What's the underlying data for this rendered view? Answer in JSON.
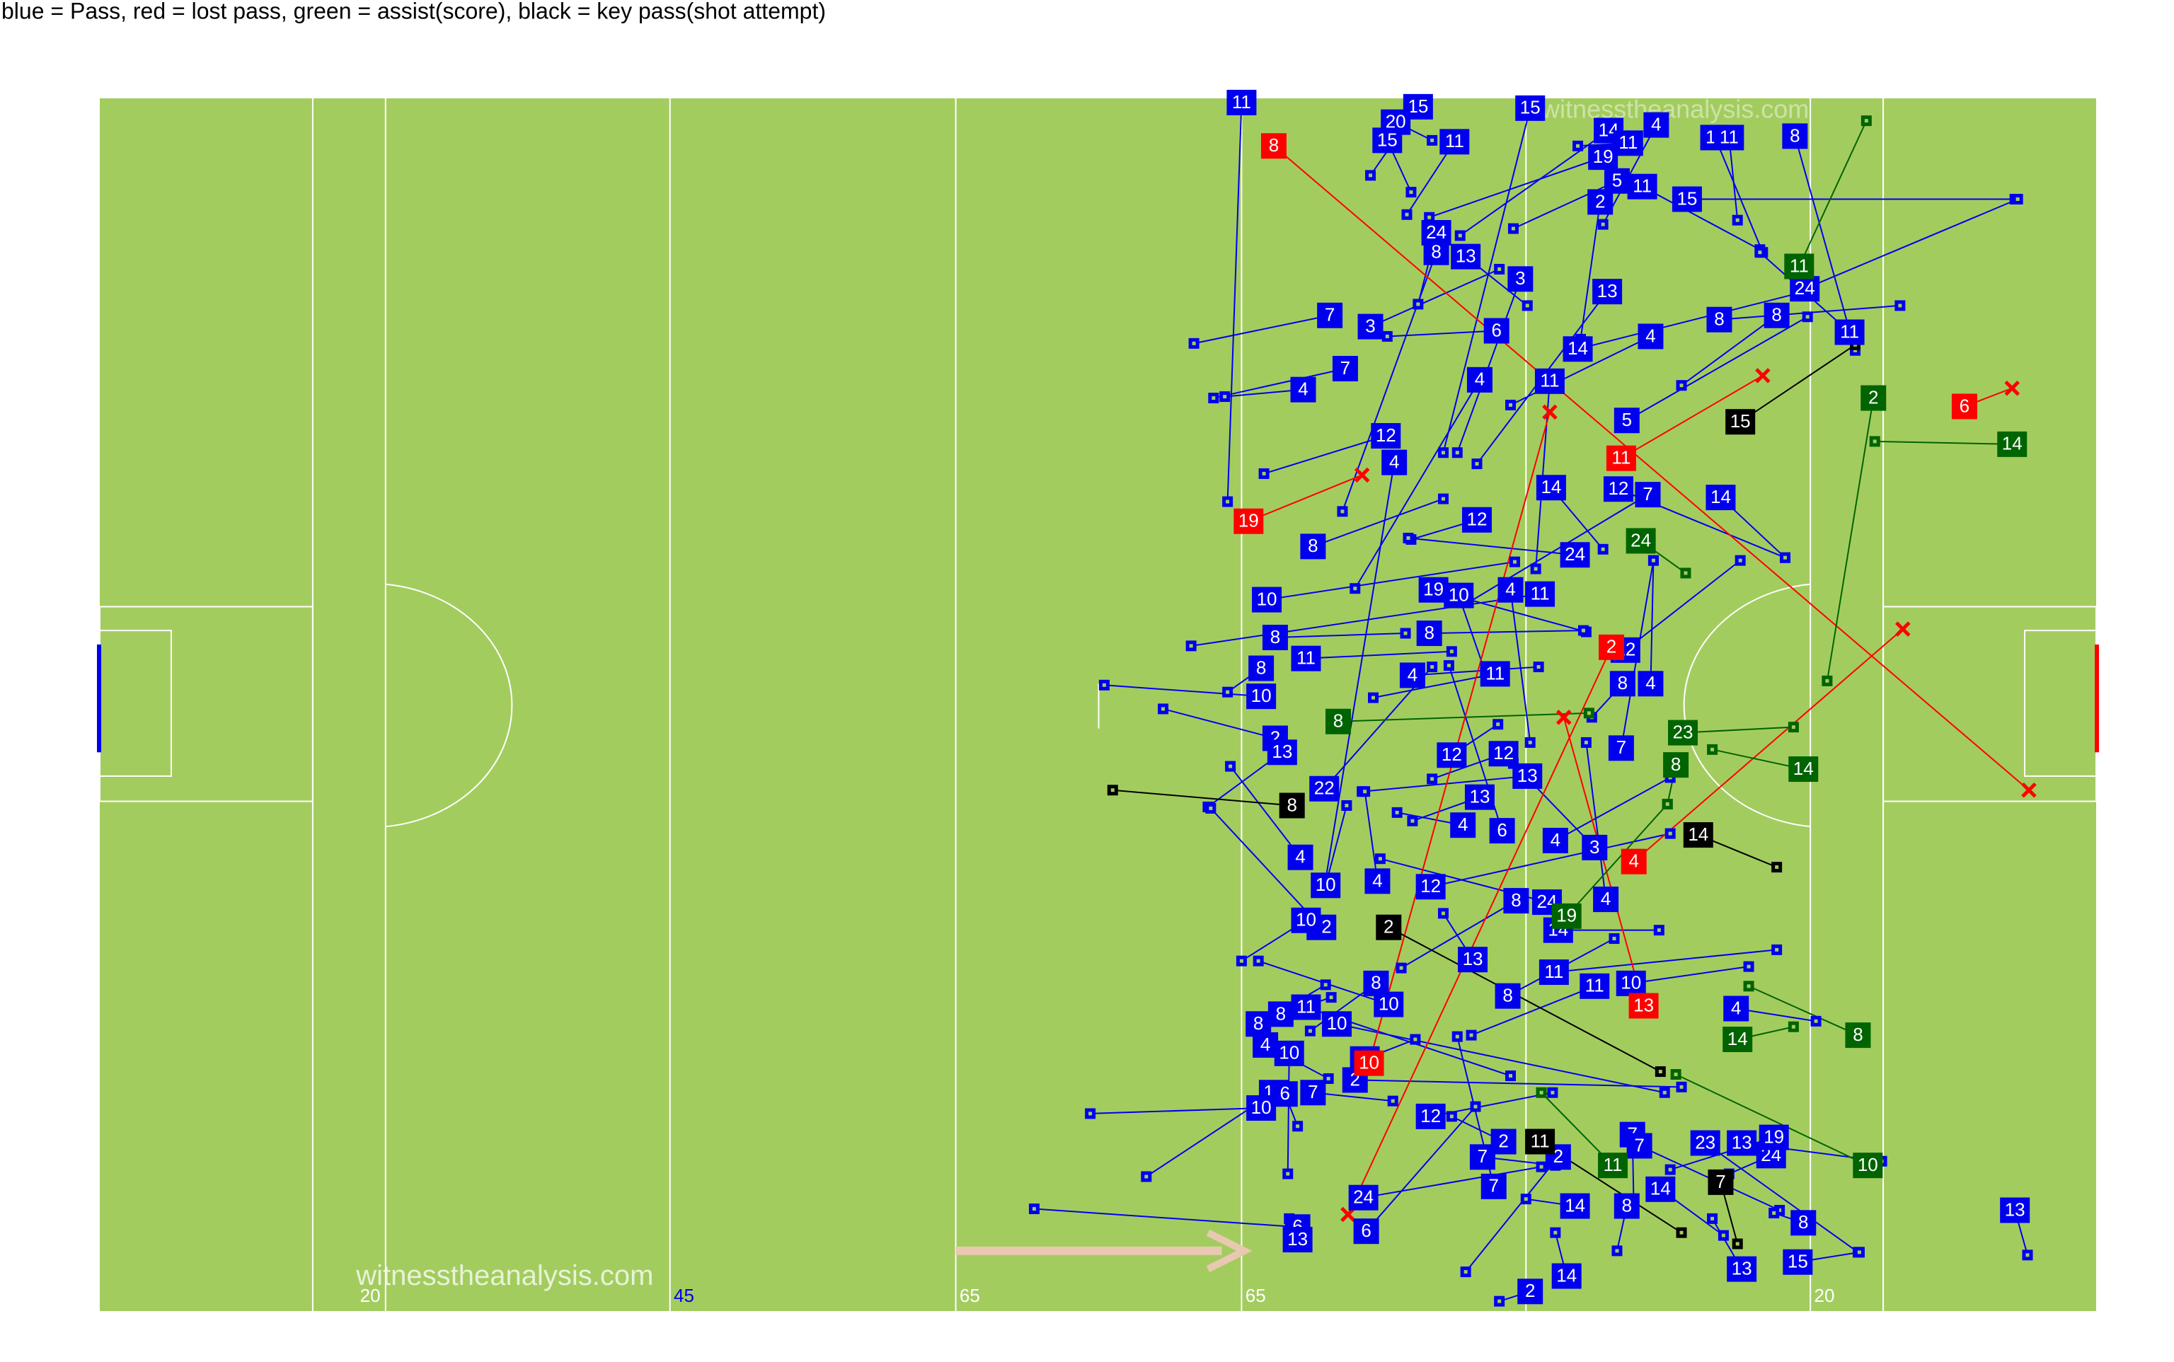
{
  "chart_data": {
    "type": "pass-map",
    "title": "blue = Pass, red = lost pass, green = assist(score), black = key pass(shot attempt)",
    "watermark": "witnesstheanalysis.com",
    "line_labels": [
      20,
      45,
      65,
      65,
      20
    ],
    "pitch_color": "#a3cc5f",
    "xlim": [
      71,
      1496
    ],
    "ylim": [
      70,
      936
    ],
    "series": [
      {
        "color": "#0000ee",
        "end_marker": "square",
        "player": [
          11,
          15,
          20,
          15,
          11,
          15,
          14,
          4,
          11,
          11,
          11,
          8,
          19,
          5,
          11,
          2,
          15,
          24,
          8,
          13,
          3,
          7,
          3,
          6,
          13,
          4,
          8,
          8,
          24,
          11,
          14,
          7,
          4,
          4,
          11,
          5,
          12,
          4,
          14,
          12,
          7,
          14,
          12,
          24,
          8,
          10,
          19,
          10,
          4,
          11,
          8,
          8,
          11,
          8,
          4,
          11,
          12,
          8,
          4,
          10,
          2,
          13,
          7,
          12,
          12,
          13,
          22,
          13,
          4,
          6,
          4,
          3,
          4,
          10,
          4,
          12,
          8,
          24,
          4,
          12,
          10,
          14,
          13,
          11,
          11,
          10,
          8,
          8,
          10,
          11,
          8,
          10,
          8,
          4,
          10,
          10,
          4,
          2,
          12,
          6,
          7,
          10,
          12,
          7,
          7,
          2,
          7,
          2,
          23,
          13,
          24,
          19,
          7,
          14,
          14,
          8,
          8,
          24,
          6,
          13,
          6,
          13,
          15,
          2,
          14,
          13
        ],
        "x": [
          886,
          1012,
          996,
          990,
          1038,
          1092,
          1148,
          1182,
          1162,
          1224,
          1234,
          1281,
          1144,
          1154,
          1172,
          1142,
          1204,
          1025,
          1025,
          1046,
          1085,
          949,
          978,
          1068,
          1147,
          1178,
          1227,
          1268,
          1288,
          1320,
          1126,
          960,
          930,
          1056,
          1106,
          1161,
          989,
          995,
          1107,
          1155,
          1176,
          1228,
          1054,
          1124,
          937,
          904,
          1023,
          1041,
          1078,
          1099,
          910,
          900,
          932,
          1020,
          1008,
          1067,
          1160,
          1158,
          1178,
          900,
          910,
          915,
          1157,
          1036,
          1073,
          1090,
          945,
          1056,
          1044,
          1072,
          1110,
          1138,
          928,
          946,
          983,
          1021,
          1082,
          1104,
          1146,
          943,
          932,
          1112,
          1051,
          1109,
          1138,
          1164,
          1076,
          982,
          991,
          932,
          914,
          954,
          898,
          903,
          920,
          974,
          1239,
          967,
          909,
          917,
          937,
          900,
          1021,
          1165,
          1170,
          1073,
          1058,
          1112,
          1217,
          1243,
          1264,
          1266,
          1066,
          1185,
          1124,
          1161,
          1287,
          973,
          926,
          926,
          975,
          1243,
          1283,
          1092,
          1118,
          1438
        ],
        "y": [
          73,
          76,
          87,
          100,
          101,
          77,
          93,
          89,
          102,
          98,
          98,
          97,
          112,
          129,
          133,
          144,
          142,
          166,
          180,
          183,
          199,
          225,
          233,
          236,
          208,
          240,
          228,
          225,
          206,
          237,
          249,
          263,
          278,
          271,
          272,
          300,
          311,
          330,
          348,
          349,
          353,
          355,
          371,
          396,
          390,
          428,
          421,
          425,
          421,
          424,
          455,
          477,
          470,
          452,
          482,
          481,
          464,
          488,
          488,
          497,
          527,
          537,
          534,
          539,
          538,
          554,
          563,
          569,
          589,
          593,
          600,
          605,
          612,
          632,
          629,
          633,
          643,
          644,
          642,
          662,
          657,
          664,
          685,
          694,
          704,
          702,
          711,
          702,
          717,
          719,
          724,
          731,
          731,
          746,
          752,
          756,
          720,
          771,
          780,
          781,
          780,
          791,
          797,
          810,
          818,
          815,
          826,
          826,
          816,
          816,
          825,
          812,
          847,
          849,
          861,
          861,
          873,
          855,
          876,
          885,
          879,
          906,
          901,
          922,
          911,
          864
        ],
        "x_end": [
          876,
          978,
          1022,
          1007,
          1004,
          1030,
          1042,
          1144,
          1126,
          1258,
          1240,
          1324,
          1020,
          1080,
          1256,
          1128,
          1438,
          1012,
          958,
          1090,
          1040,
          852,
          1070,
          990,
          1054,
          1078,
          1356,
          1200,
          1440,
          1256,
          1292,
          866,
          874,
          967,
          1096,
          1290,
          902,
          946,
          1144,
          1274,
          1048,
          1274,
          1007,
          1005,
          1030,
          1081,
          1132,
          1060,
          1092,
          850,
          1003,
          876,
          1036,
          1130,
          1098,
          980,
          1242,
          1136,
          1180,
          788,
          830,
          862,
          1180,
          1069,
          1022,
          972,
          1022,
          1008,
          997,
          1034,
          1192,
          1080,
          878,
          961,
          974,
          1192,
          1000,
          985,
          1132,
          864,
          886,
          1184,
          1030,
          1268,
          1050,
          1248,
          1152,
          935,
          898,
          1078,
          950,
          1188,
          946,
          948,
          919,
          1010,
          1296,
          1200,
          818,
          926,
          994,
          778,
          1108,
          1166,
          1270,
          1036,
          1110,
          1046,
          1326,
          1343,
          1234,
          1192,
          1040,
          1230,
          1089,
          1154,
          1266,
          1100,
          738,
          920,
          1053,
          1222,
          1327,
          1070,
          1110,
          1447
        ],
        "y_end": [
          358,
          125,
          100,
          137,
          153,
          323,
          168,
          160,
          104,
          180,
          157,
          250,
          155,
          163,
          178,
          242,
          142,
          217,
          365,
          218,
          323,
          245,
          192,
          240,
          331,
          289,
          218,
          275,
          142,
          180,
          207,
          284,
          283,
          420,
          406,
          226,
          338,
          628,
          392,
          398,
          430,
          398,
          385,
          384,
          356,
          401,
          451,
          480,
          530,
          461,
          452,
          494,
          465,
          450,
          476,
          498,
          400,
          512,
          400,
          489,
          506,
          576,
          400,
          517,
          556,
          565,
          476,
          586,
          580,
          475,
          555,
          545,
          547,
          575,
          565,
          595,
          691,
          613,
          530,
          577,
          686,
          664,
          652,
          678,
          739,
          690,
          670,
          736,
          686,
          768,
          712,
          780,
          703,
          770,
          838,
          742,
          729,
          776,
          840,
          804,
          786,
          795,
          780,
          864,
          864,
          797,
          832,
          908,
          894,
          829,
          838,
          835,
          740,
          882,
          856,
          893,
          866,
          833,
          863,
          870,
          790,
          870,
          894,
          929,
          880,
          896
        ]
      },
      {
        "color": "#ff0000",
        "end_marker": "cross",
        "player": [
          8,
          11,
          19,
          6,
          4,
          13,
          10,
          2
        ],
        "x": [
          909,
          1157,
          891,
          1402,
          1166,
          1173,
          977,
          1150
        ],
        "y": [
          104,
          327,
          372,
          290,
          615,
          718,
          759,
          462
        ],
        "x_end": [
          1448,
          1258,
          972,
          1436,
          1358,
          1116,
          1106,
          962
        ],
        "y_end": [
          564,
          268,
          339,
          277,
          449,
          512,
          294,
          867
        ]
      },
      {
        "color": "#006400",
        "end_marker": "square",
        "player": [
          11,
          2,
          14,
          24,
          8,
          23,
          14,
          8,
          14,
          8,
          10,
          11,
          19
        ],
        "x": [
          1284,
          1337,
          1436,
          1171,
          955,
          1201,
          1287,
          1196,
          1240,
          1326,
          1333,
          1151,
          1118
        ],
        "y": [
          190,
          284,
          317,
          386,
          515,
          523,
          549,
          546,
          742,
          739,
          832,
          832,
          654
        ],
        "x_end": [
          1332,
          1304,
          1338,
          1203,
          1134,
          1280,
          1222,
          1190,
          1280,
          1248,
          1196,
          1100,
          1190
        ],
        "y_end": [
          86,
          486,
          315,
          409,
          509,
          519,
          535,
          574,
          733,
          704,
          767,
          780,
          574
        ]
      },
      {
        "color": "#000000",
        "end_marker": "square",
        "player": [
          15,
          8,
          14,
          2,
          11,
          7
        ],
        "x": [
          1242,
          922,
          1212,
          991,
          1099,
          1228
        ],
        "y": [
          301,
          575,
          596,
          662,
          815,
          844
        ],
        "x_end": [
          1324,
          794,
          1268,
          1185,
          1200,
          1240
        ],
        "y_end": [
          246,
          564,
          619,
          765,
          880,
          888
        ]
      }
    ]
  }
}
